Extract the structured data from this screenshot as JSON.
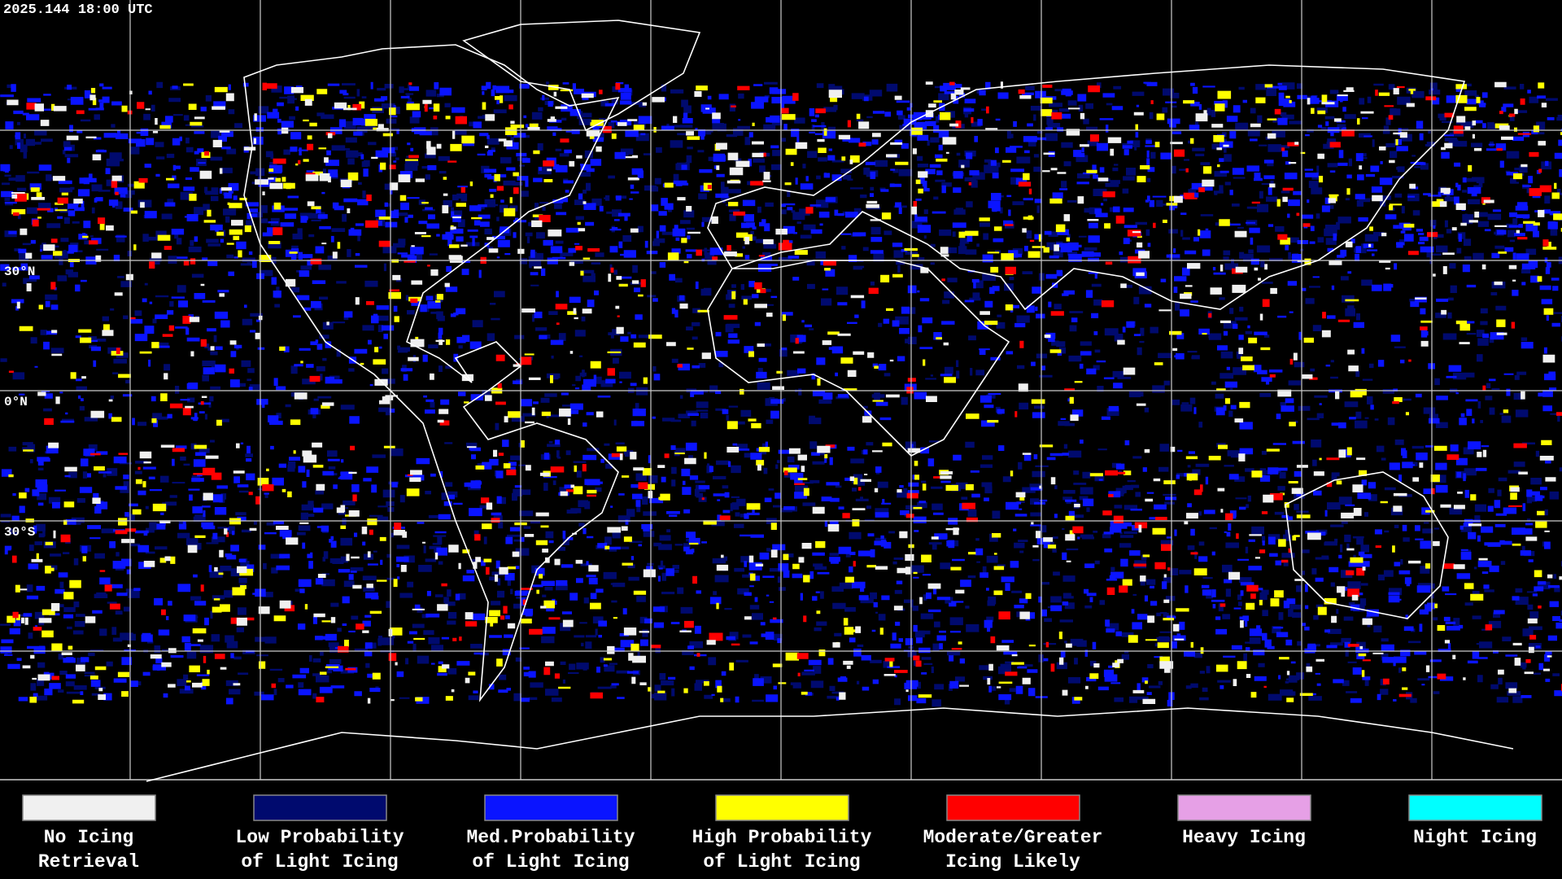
{
  "header": {
    "timestamp": "2025.144 18:00 UTC"
  },
  "map": {
    "lat_labels": [
      "30°N",
      "0°N",
      "30°S"
    ]
  },
  "legend": {
    "items": [
      {
        "lines": [
          "No Icing",
          "Retrieval"
        ],
        "color": "#f0f0f0"
      },
      {
        "lines": [
          "Low Probability",
          "of Light Icing"
        ],
        "color": "#000a6e"
      },
      {
        "lines": [
          "Med.Probability",
          "of Light Icing"
        ],
        "color": "#0a14ff"
      },
      {
        "lines": [
          "High Probability",
          "of Light Icing"
        ],
        "color": "#ffff00"
      },
      {
        "lines": [
          "Moderate/Greater",
          "Icing Likely"
        ],
        "color": "#ff0000"
      },
      {
        "lines": [
          "Heavy Icing"
        ],
        "color": "#e6a0e6"
      },
      {
        "lines": [
          "Night Icing"
        ],
        "color": "#00ffff"
      }
    ]
  }
}
